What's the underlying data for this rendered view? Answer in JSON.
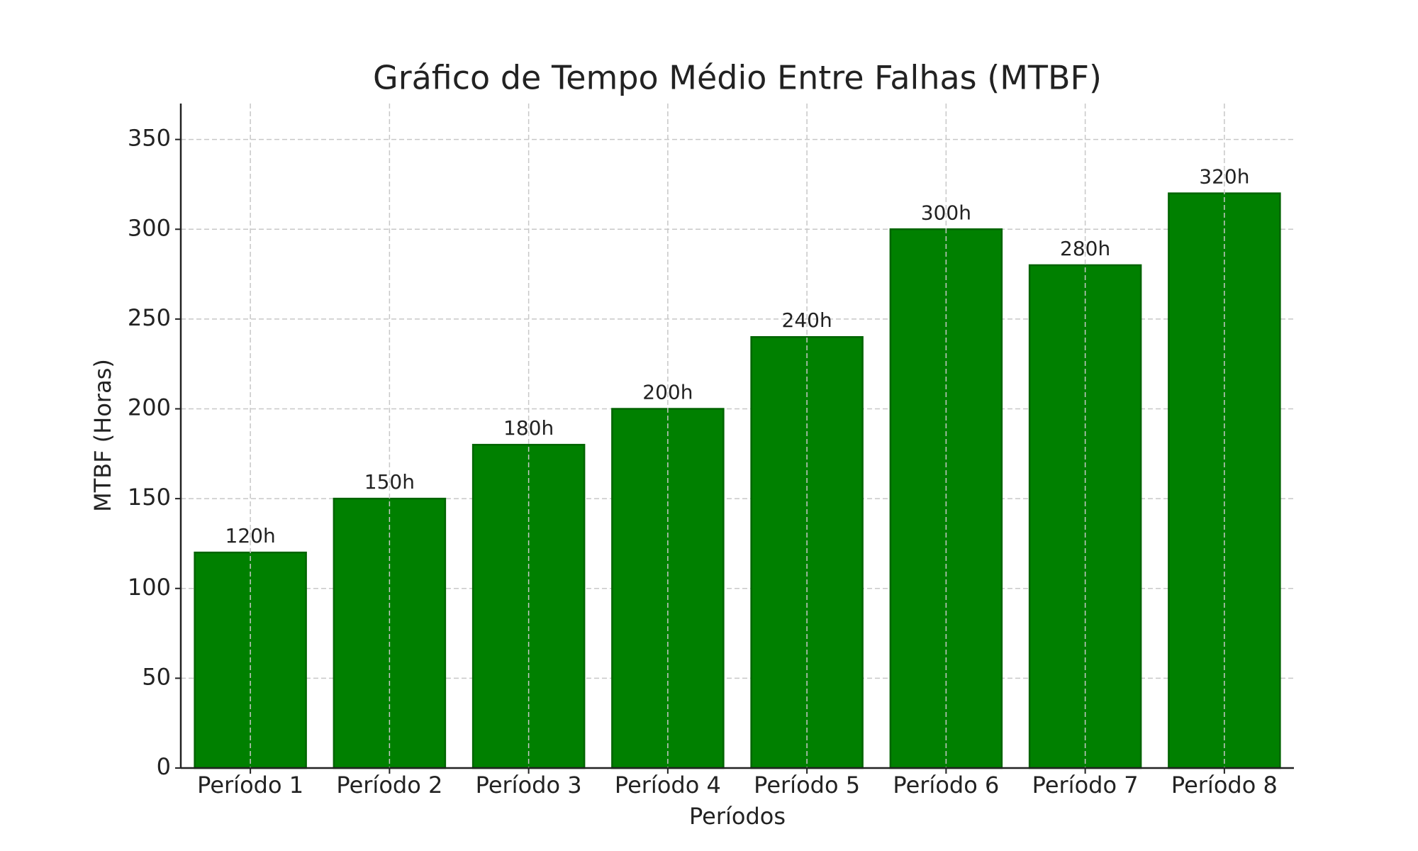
{
  "chart_data": {
    "type": "bar",
    "title": "Gráfico de Tempo Médio Entre Falhas (MTBF)",
    "x_label": "Períodos",
    "y_label": "MTBF (Horas)",
    "categories": [
      "Período 1",
      "Período 2",
      "Período 3",
      "Período 4",
      "Período 5",
      "Período 6",
      "Período 7",
      "Período 8"
    ],
    "values": [
      120,
      150,
      180,
      200,
      240,
      300,
      280,
      320
    ],
    "value_labels": [
      "120h",
      "150h",
      "180h",
      "200h",
      "240h",
      "300h",
      "280h",
      "320h"
    ],
    "color": "#008000",
    "edge_color": "#006400",
    "ylim": [
      0,
      370
    ],
    "yticks": [
      0,
      50,
      100,
      150,
      200,
      250,
      300,
      350
    ],
    "grid": true
  }
}
